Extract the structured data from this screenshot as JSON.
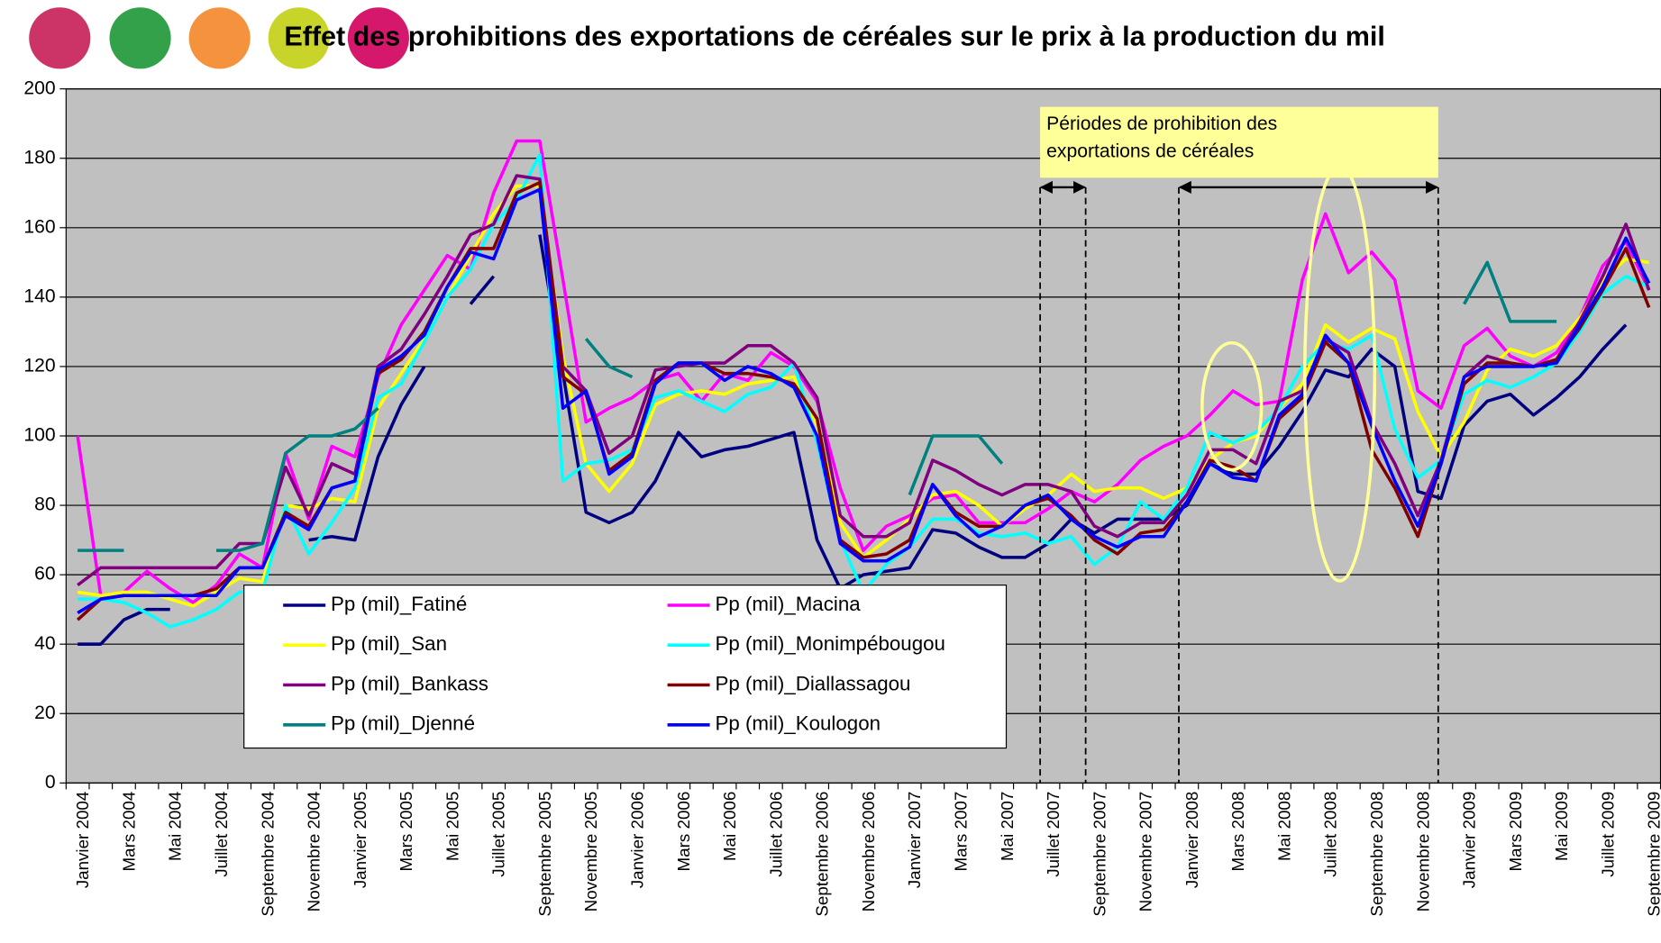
{
  "chart_data": {
    "type": "line",
    "title": "Effet des prohibitions des exportations de céréales sur le prix à la production du mil",
    "annotation": [
      "Périodes de prohibition des",
      "exportations de céréales"
    ],
    "categories": [
      "Janvier 2004",
      null,
      "Mars 2004",
      null,
      "Mai 2004",
      null,
      "Juillet 2004",
      null,
      "Septembre 2004",
      null,
      "Novembre 2004",
      null,
      "Janvier 2005",
      null,
      "Mars 2005",
      null,
      "Mai 2005",
      null,
      "Juillet 2005",
      null,
      "Septembre 2005",
      null,
      "Novembre 2005",
      null,
      "Janvier 2006",
      null,
      "Mars 2006",
      null,
      "Mai 2006",
      null,
      "Juillet 2006",
      null,
      "Septembre 2006",
      null,
      "Novembre 2006",
      null,
      "Janvier 2007",
      null,
      "Mars 2007",
      null,
      "Mai 2007",
      null,
      "Juillet 2007",
      null,
      "Septembre 2007",
      null,
      "Novembre 2007",
      null,
      "Janvier 2008",
      null,
      "Mars 2008",
      null,
      "Mai 2008",
      null,
      "Juillet 2008",
      null,
      "Septembre 2008",
      null,
      "Novembre 2008",
      null,
      "Janvier 2009",
      null,
      "Mars 2009",
      null,
      "Mai 2009",
      null,
      "Juillet 2009",
      null,
      "Septembre 2009"
    ],
    "ylim": [
      0,
      200
    ],
    "yticks": [
      0,
      20,
      40,
      60,
      80,
      100,
      120,
      140,
      160,
      180,
      200
    ],
    "grid": true,
    "series": [
      {
        "name": "Pp (mil)_Fatiné",
        "color": "#000080",
        "values": [
          40,
          40,
          47,
          50,
          50,
          null,
          null,
          null,
          null,
          null,
          70,
          71,
          70,
          94,
          109,
          120,
          null,
          138,
          146,
          null,
          158,
          118,
          78,
          75,
          78,
          87,
          101,
          94,
          96,
          97,
          99,
          101,
          70,
          56,
          60,
          61,
          62,
          73,
          72,
          68,
          65,
          65,
          69,
          76,
          72,
          76,
          76,
          76,
          80,
          92,
          89,
          89,
          97,
          107,
          119,
          117,
          125,
          120,
          84,
          82,
          103,
          110,
          112,
          106,
          111,
          117,
          125,
          132,
          null
        ]
      },
      {
        "name": "Pp (mil)_Macina",
        "color": "#ff00ff",
        "values": [
          100,
          54,
          55,
          61,
          56,
          52,
          57,
          66,
          62,
          95,
          76,
          97,
          94,
          117,
          132,
          142,
          152,
          148,
          170,
          185,
          185,
          145,
          104,
          108,
          111,
          116,
          118,
          110,
          118,
          116,
          124,
          120,
          110,
          85,
          67,
          74,
          77,
          82,
          83,
          75,
          75,
          75,
          79,
          84,
          81,
          86,
          93,
          97,
          100,
          106,
          113,
          109,
          110,
          145,
          164,
          147,
          153,
          145,
          113,
          108,
          126,
          131,
          123,
          120,
          124,
          134,
          149,
          156,
          142
        ]
      },
      {
        "name": "Pp (mil)_San",
        "color": "#ffff00",
        "values": [
          55,
          54,
          55,
          55,
          53,
          51,
          55,
          59,
          58,
          80,
          79,
          82,
          81,
          108,
          118,
          128,
          140,
          152,
          164,
          172,
          172,
          123,
          92,
          84,
          92,
          109,
          112,
          113,
          112,
          115,
          116,
          117,
          103,
          75,
          65,
          70,
          76,
          83,
          84,
          80,
          74,
          79,
          83,
          89,
          84,
          85,
          85,
          82,
          85,
          93,
          98,
          100,
          108,
          115,
          132,
          127,
          131,
          128,
          107,
          94,
          104,
          119,
          125,
          123,
          126,
          134,
          145,
          151,
          150
        ]
      },
      {
        "name": "Pp (mil)_Monimpébougou",
        "color": "#00ffff",
        "values": [
          53,
          53,
          52,
          49,
          45,
          47,
          50,
          55,
          55,
          80,
          66,
          75,
          85,
          111,
          115,
          127,
          140,
          148,
          161,
          168,
          181,
          87,
          92,
          93,
          96,
          111,
          113,
          110,
          107,
          112,
          114,
          121,
          98,
          70,
          55,
          63,
          68,
          76,
          76,
          72,
          71,
          72,
          69,
          71,
          63,
          68,
          81,
          76,
          85,
          101,
          98,
          101,
          108,
          120,
          127,
          125,
          129,
          102,
          88,
          93,
          112,
          116,
          114,
          117,
          121,
          130,
          141,
          146,
          143
        ]
      },
      {
        "name": "Pp (mil)_Bankass",
        "color": "#800080",
        "values": [
          57,
          62,
          62,
          62,
          62,
          62,
          62,
          69,
          69,
          91,
          77,
          92,
          89,
          120,
          125,
          135,
          146,
          158,
          161,
          175,
          174,
          120,
          113,
          95,
          100,
          119,
          120,
          121,
          121,
          126,
          126,
          121,
          111,
          77,
          71,
          71,
          75,
          93,
          90,
          86,
          83,
          86,
          86,
          84,
          74,
          71,
          75,
          75,
          83,
          96,
          96,
          92,
          110,
          113,
          128,
          124,
          104,
          92,
          77,
          93,
          117,
          123,
          121,
          120,
          122,
          133,
          146,
          161,
          142
        ]
      },
      {
        "name": "Pp (mil)_Diallassagou",
        "color": "#800000",
        "values": [
          47,
          53,
          54,
          54,
          54,
          54,
          56,
          62,
          62,
          78,
          74,
          85,
          87,
          118,
          122,
          130,
          143,
          154,
          154,
          170,
          173,
          117,
          112,
          90,
          95,
          116,
          121,
          121,
          118,
          118,
          117,
          115,
          105,
          70,
          65,
          66,
          70,
          86,
          78,
          74,
          74,
          80,
          82,
          77,
          70,
          66,
          72,
          73,
          81,
          93,
          91,
          87,
          105,
          111,
          127,
          121,
          96,
          85,
          71,
          92,
          115,
          121,
          121,
          120,
          122,
          131,
          142,
          154,
          137
        ]
      },
      {
        "name": "Pp (mil)_Djenné",
        "color": "#008080",
        "values": [
          67,
          67,
          67,
          null,
          null,
          null,
          67,
          67,
          69,
          95,
          100,
          100,
          102,
          108,
          null,
          null,
          null,
          null,
          null,
          null,
          null,
          null,
          128,
          120,
          117,
          null,
          null,
          null,
          null,
          null,
          null,
          null,
          null,
          null,
          null,
          null,
          83,
          100,
          100,
          100,
          92,
          null,
          null,
          null,
          null,
          null,
          null,
          null,
          null,
          null,
          null,
          null,
          null,
          null,
          null,
          null,
          null,
          null,
          null,
          null,
          138,
          150,
          133,
          133,
          133,
          null,
          null,
          null,
          null
        ]
      },
      {
        "name": "Pp (mil)_Koulogon",
        "color": "#0000ff",
        "values": [
          49,
          53,
          54,
          54,
          54,
          54,
          54,
          62,
          62,
          77,
          73,
          85,
          87,
          119,
          123,
          129,
          143,
          153,
          151,
          168,
          171,
          108,
          113,
          89,
          94,
          115,
          121,
          121,
          116,
          120,
          118,
          114,
          100,
          69,
          64,
          64,
          68,
          86,
          77,
          71,
          74,
          80,
          83,
          76,
          71,
          68,
          71,
          71,
          81,
          92,
          88,
          87,
          106,
          112,
          129,
          121,
          103,
          87,
          74,
          92,
          117,
          120,
          120,
          120,
          121,
          132,
          143,
          157,
          144
        ]
      }
    ]
  }
}
